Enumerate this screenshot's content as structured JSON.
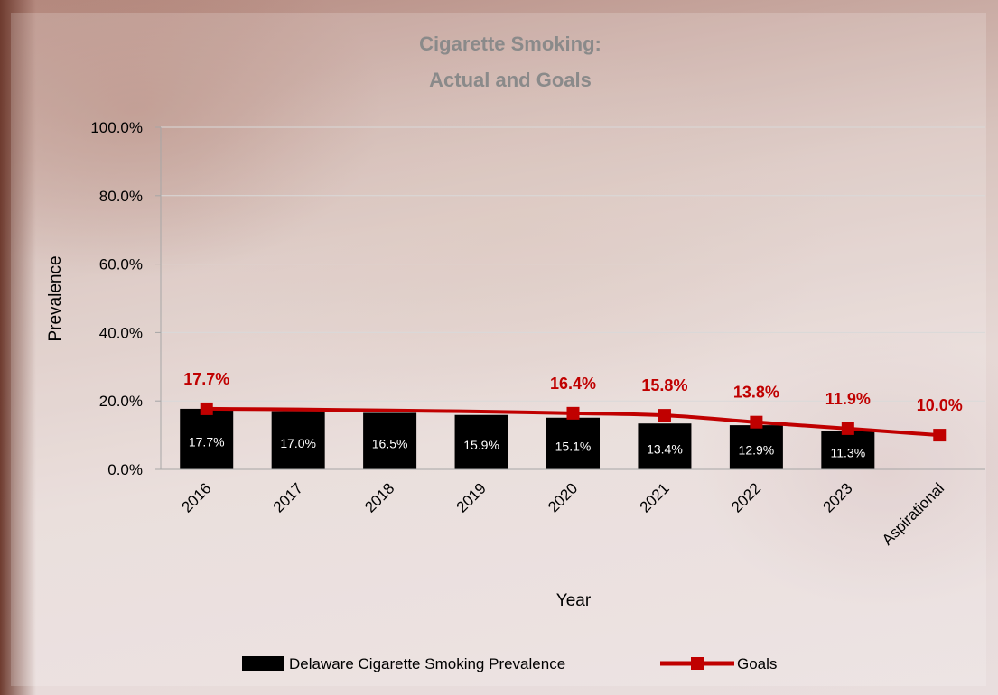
{
  "chart_data": {
    "type": "bar",
    "title": [
      "Cigarette Smoking:",
      "Actual and Goals"
    ],
    "xlabel": "Year",
    "ylabel": "Prevalence",
    "ylim": [
      0,
      100
    ],
    "yticks": [
      "0.0%",
      "20.0%",
      "40.0%",
      "60.0%",
      "80.0%",
      "100.0%"
    ],
    "categories": [
      "2016",
      "2017",
      "2018",
      "2019",
      "2020",
      "2021",
      "2022",
      "2023",
      "Aspirational"
    ],
    "grid": "horizontal",
    "legend_position": "bottom",
    "series": [
      {
        "name": "Delaware Cigarette Smoking Prevalence",
        "type": "bar",
        "color": "#000000",
        "values": [
          17.7,
          17.0,
          16.5,
          15.9,
          15.1,
          13.4,
          12.9,
          11.3,
          null
        ],
        "labels": [
          "17.7%",
          "17.0%",
          "16.5%",
          "15.9%",
          "15.1%",
          "13.4%",
          "12.9%",
          "11.3%",
          ""
        ]
      },
      {
        "name": "Goals",
        "type": "line",
        "color": "#c00000",
        "values": [
          17.7,
          17.5,
          17.2,
          16.9,
          16.4,
          15.8,
          13.8,
          11.9,
          10.0
        ],
        "labels": [
          "17.7%",
          "",
          "",
          "",
          "16.4%",
          "15.8%",
          "13.8%",
          "11.9%",
          "10.0%"
        ]
      }
    ]
  }
}
